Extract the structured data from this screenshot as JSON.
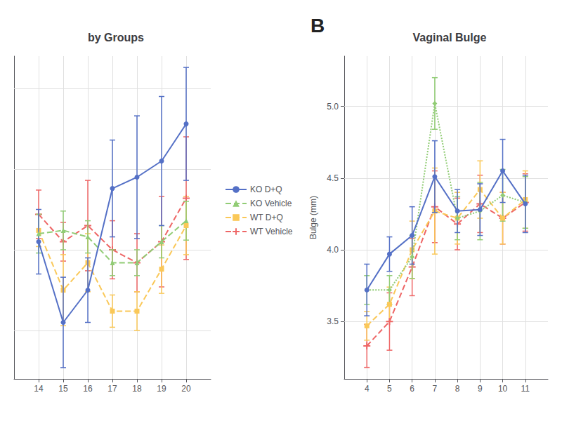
{
  "chart_data": [
    {
      "type": "line",
      "title": "by Groups",
      "x": [
        14,
        15,
        16,
        17,
        18,
        19,
        20
      ],
      "xlim": [
        13,
        21
      ],
      "xticks": [
        14,
        15,
        16,
        17,
        18,
        19,
        20
      ],
      "ylim": [
        2.7,
        4.7
      ],
      "yticks": [
        3,
        3.5,
        4,
        4.5
      ],
      "grid": true,
      "legend": "right",
      "tick_labels": "x",
      "series": [
        {
          "name": "KO D+Q",
          "values": [
            3.55,
            3.05,
            3.25,
            3.88,
            3.95,
            4.05,
            4.28
          ],
          "yerr": [
            0.2,
            0.28,
            0.2,
            0.3,
            0.38,
            0.4,
            0.35
          ],
          "marker": "circle",
          "line_style": "solid"
        },
        {
          "name": "KO Vehicle",
          "values": [
            3.6,
            3.62,
            3.58,
            3.42,
            3.42,
            3.55,
            3.68
          ],
          "yerr": [
            0.12,
            0.12,
            0.1,
            0.08,
            0.08,
            0.1,
            0.12
          ],
          "marker": "triangle",
          "line_style": "dashed"
        },
        {
          "name": "WT D+Q",
          "values": [
            3.62,
            3.25,
            3.42,
            3.12,
            3.12,
            3.38,
            3.65
          ],
          "yerr": [
            0.1,
            0.22,
            0.18,
            0.1,
            0.12,
            0.15,
            0.18
          ],
          "marker": "square",
          "line_style": "dashed"
        },
        {
          "name": "WT Vehicle",
          "values": [
            3.72,
            3.55,
            3.65,
            3.5,
            3.42,
            3.55,
            3.82
          ],
          "yerr": [
            0.15,
            0.12,
            0.28,
            0.18,
            0.18,
            0.28,
            0.38
          ],
          "marker": "plus",
          "line_style": "dashed"
        }
      ]
    },
    {
      "type": "line",
      "title": "Vaginal Bulge",
      "ylabel": "Bulge (mm)",
      "annotations": [
        "B"
      ],
      "x": [
        4,
        5,
        6,
        7,
        8,
        9,
        10,
        11
      ],
      "xlim": [
        3,
        12
      ],
      "xticks": [
        4,
        5,
        6,
        7,
        8,
        9,
        10,
        11
      ],
      "ylim": [
        3.1,
        5.35
      ],
      "yticks": [
        3.5,
        {
          "value": 4,
          "label": "4.0"
        },
        4.5,
        {
          "value": 5,
          "label": "5.0"
        }
      ],
      "grid": true,
      "series": [
        {
          "name": "KO D+Q",
          "values": [
            3.72,
            3.97,
            4.1,
            4.51,
            4.27,
            4.28,
            4.55,
            4.32
          ],
          "yerr": [
            0.18,
            0.12,
            0.2,
            0.25,
            0.15,
            0.18,
            0.22,
            0.2
          ],
          "marker": "circle",
          "line_style": "solid"
        },
        {
          "name": "KO Vehicle",
          "values": [
            3.72,
            3.72,
            3.95,
            5.02,
            4.22,
            4.27,
            4.38,
            4.33
          ],
          "yerr": [
            0.1,
            0.1,
            0.15,
            0.18,
            0.15,
            0.2,
            0.18,
            0.18
          ],
          "marker": "diamond",
          "line_style": "dotted"
        },
        {
          "name": "WT D+Q",
          "values": [
            3.47,
            3.62,
            4.0,
            4.27,
            4.22,
            4.42,
            4.22,
            4.35
          ],
          "yerr": [
            0.1,
            0.12,
            0.2,
            0.3,
            0.18,
            0.2,
            0.18,
            0.2
          ],
          "marker": "square",
          "line_style": "dashed"
        },
        {
          "name": "WT Vehicle",
          "values": [
            3.33,
            3.5,
            3.88,
            4.3,
            4.18,
            4.32,
            4.22,
            4.33
          ],
          "yerr": [
            0.15,
            0.2,
            0.2,
            0.25,
            0.18,
            0.2,
            0.18,
            0.2
          ],
          "marker": "plus",
          "line_style": "dashed"
        }
      ]
    }
  ]
}
